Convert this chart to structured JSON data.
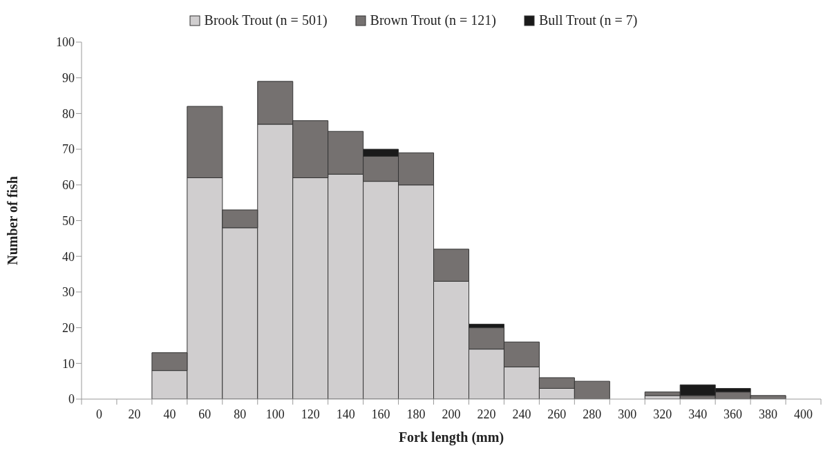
{
  "chart_data": {
    "type": "bar",
    "stacked": true,
    "categories": [
      "0",
      "20",
      "40",
      "60",
      "80",
      "100",
      "120",
      "140",
      "160",
      "180",
      "200",
      "220",
      "240",
      "260",
      "280",
      "300",
      "320",
      "340",
      "360",
      "380",
      "400"
    ],
    "series": [
      {
        "name": "Brook Trout (n = 501)",
        "color": "#d0cecf",
        "values": [
          0,
          0,
          8,
          62,
          48,
          77,
          62,
          63,
          61,
          60,
          33,
          14,
          9,
          3,
          0,
          0,
          1,
          0,
          0,
          0,
          0
        ]
      },
      {
        "name": "Brown Trout (n = 121)",
        "color": "#757170",
        "values": [
          0,
          0,
          5,
          20,
          5,
          12,
          16,
          12,
          7,
          9,
          9,
          6,
          7,
          3,
          5,
          0,
          1,
          1,
          2,
          1,
          0
        ]
      },
      {
        "name": "Bull Trout (n = 7)",
        "color": "#1a1a1a",
        "values": [
          0,
          0,
          0,
          0,
          0,
          0,
          0,
          0,
          2,
          0,
          0,
          1,
          0,
          0,
          0,
          0,
          0,
          3,
          1,
          0,
          0
        ]
      }
    ],
    "xlabel": "Fork length (mm)",
    "ylabel": "Number of fish",
    "ylim": [
      0,
      100
    ],
    "yticks": [
      0,
      10,
      20,
      30,
      40,
      50,
      60,
      70,
      80,
      90,
      100
    ],
    "grid": false,
    "legend": "top"
  }
}
